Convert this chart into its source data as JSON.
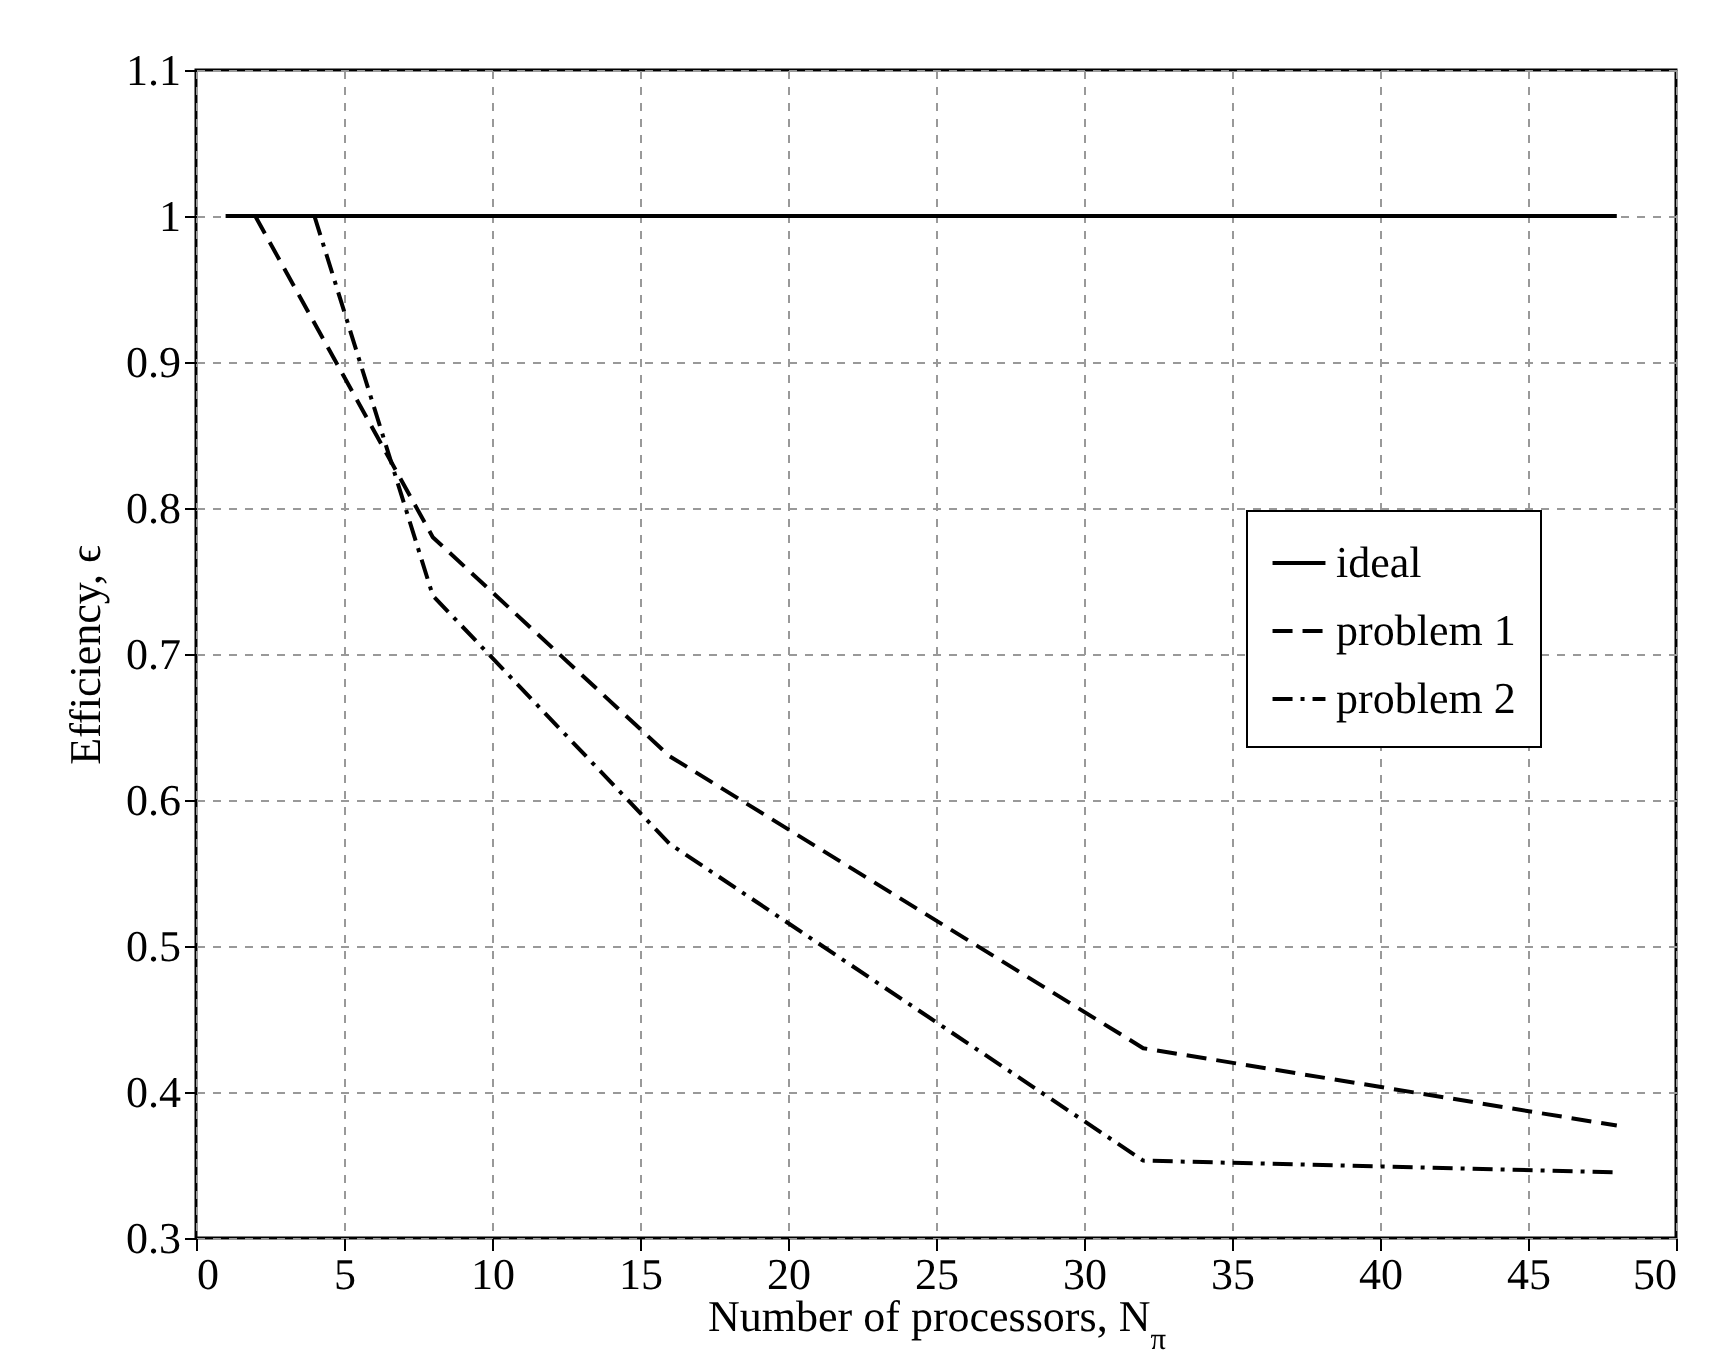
{
  "chart_data": {
    "type": "line",
    "xlabel": "Number of processors, N$_{π}$",
    "ylabel": "Efficiency, ϵ",
    "xlim": [
      0,
      50
    ],
    "xticks": [
      0,
      5,
      10,
      15,
      20,
      25,
      30,
      35,
      40,
      45,
      50
    ],
    "ylim": [
      0.3,
      1.1
    ],
    "yticks": [
      0.3,
      0.4,
      0.5,
      0.6,
      0.7,
      0.8,
      0.9,
      1,
      1.1
    ],
    "grid": true,
    "legend": "right",
    "marker": "none",
    "series": [
      {
        "name": "ideal",
        "color": "#000000",
        "line_style": "solid",
        "x": [
          1,
          48
        ],
        "values": [
          1,
          1
        ]
      },
      {
        "name": "problem 1",
        "color": "#000000",
        "line_style": "dashed",
        "x": [
          2,
          8,
          16,
          32,
          48
        ],
        "values": [
          1,
          0.78,
          0.63,
          0.43,
          0.377
        ]
      },
      {
        "name": "problem 2",
        "color": "#000000",
        "line_style": "dashdot",
        "x": [
          4,
          8,
          16,
          32,
          48
        ],
        "values": [
          1,
          0.74,
          0.57,
          0.353,
          0.345
        ]
      }
    ]
  }
}
